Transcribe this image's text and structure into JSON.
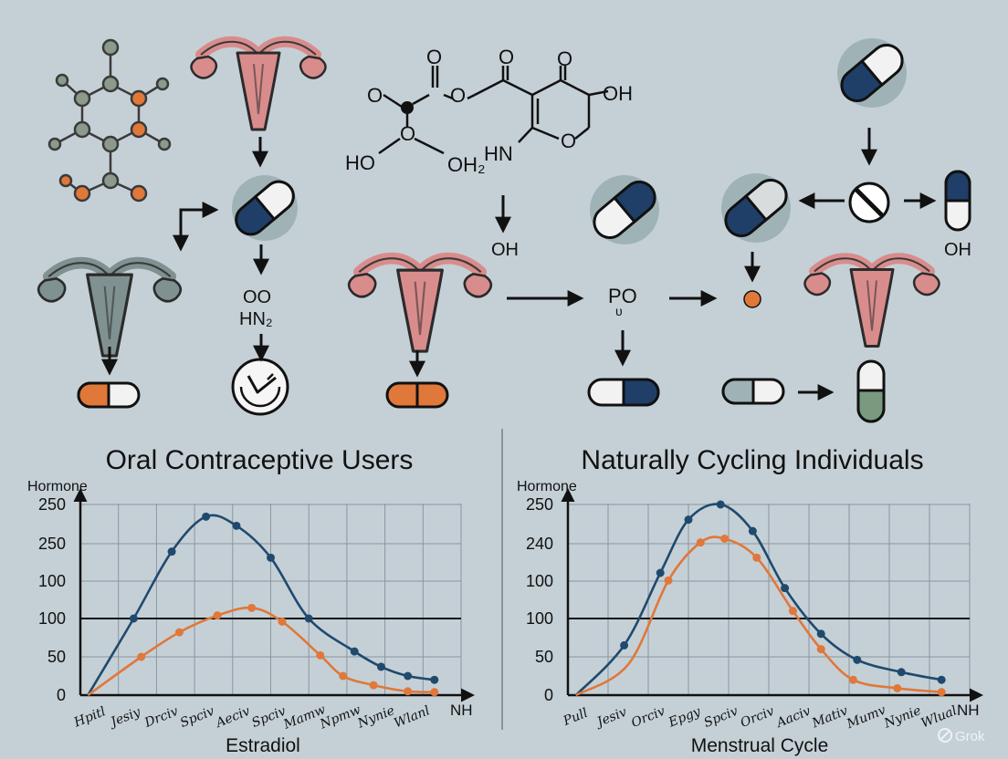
{
  "diagram": {
    "molecule_labels": {
      "left_o": "O",
      "top_o1": "O",
      "top_o2": "O",
      "top_o3": "O",
      "mid_o": "O",
      "ho": "HO",
      "oh2": "OH₂",
      "hn": "HN",
      "ring_o": "O",
      "oh_right": "OH"
    },
    "step_labels": {
      "oo": "OO",
      "hn2": "HN₂",
      "oh_below_arrow": "OH",
      "po": "PO",
      "po_sub": "ᴜ",
      "oh_right": "OH"
    }
  },
  "chart_data": [
    {
      "type": "line",
      "title": "Oral Contraceptive Users",
      "ylabel": "Hormone",
      "xlabel": "Estradiol",
      "x_end_label": "NH",
      "y_tick_labels": [
        "0",
        "50",
        "100",
        "100",
        "250",
        "250"
      ],
      "categories": [
        "Hpitl",
        "Jesiy",
        "Drciv",
        "Spciv",
        "Aeciv",
        "Sрciv",
        "Mamw",
        "Npmw",
        "Nynie",
        "Wlanl"
      ],
      "reference_line": 100,
      "series": [
        {
          "color": "#1f4a6e",
          "points": [
            [
              0.2,
              0
            ],
            [
              1.4,
              100
            ],
            [
              2.4,
              188
            ],
            [
              3.3,
              234
            ],
            [
              4.1,
              222
            ],
            [
              5.0,
              180
            ],
            [
              6.0,
              100
            ],
            [
              7.2,
              57
            ],
            [
              7.9,
              37
            ],
            [
              8.6,
              25
            ],
            [
              9.3,
              20
            ]
          ]
        },
        {
          "color": "#e0783a",
          "points": [
            [
              0.2,
              0
            ],
            [
              1.6,
              50
            ],
            [
              2.6,
              82
            ],
            [
              3.6,
              104
            ],
            [
              4.5,
              114
            ],
            [
              5.3,
              96
            ],
            [
              6.3,
              52
            ],
            [
              6.9,
              25
            ],
            [
              7.7,
              13
            ],
            [
              8.6,
              5
            ],
            [
              9.3,
              4
            ]
          ]
        }
      ]
    },
    {
      "type": "line",
      "title": "Naturally Cycling Individuals",
      "ylabel": "Hormone",
      "xlabel": "Menstrual Cycle",
      "x_end_label": "NH",
      "y_tick_labels": [
        "0",
        "50",
        "100",
        "100",
        "240",
        "250"
      ],
      "categories": [
        "Pull",
        "Jesiv",
        "Orciv",
        "Epgy",
        "Spciv",
        "Orciv",
        "Aaciv",
        "Mativ",
        "Mumv",
        "Nynie",
        "Wlual"
      ],
      "reference_line": 100,
      "series": [
        {
          "color": "#1f4a6e",
          "points": [
            [
              0.2,
              0
            ],
            [
              1.4,
              65
            ],
            [
              2.3,
              160
            ],
            [
              3.0,
              230
            ],
            [
              3.8,
              250
            ],
            [
              4.6,
              215
            ],
            [
              5.4,
              140
            ],
            [
              6.3,
              80
            ],
            [
              7.2,
              46
            ],
            [
              8.3,
              30
            ],
            [
              9.3,
              20
            ]
          ]
        },
        {
          "color": "#e0783a",
          "points": [
            [
              0.2,
              0
            ],
            [
              1.5,
              40
            ],
            [
              2.5,
              150
            ],
            [
              3.3,
              200
            ],
            [
              3.9,
              205
            ],
            [
              4.7,
              180
            ],
            [
              5.6,
              110
            ],
            [
              6.3,
              60
            ],
            [
              7.1,
              20
            ],
            [
              8.2,
              9
            ],
            [
              9.3,
              4
            ]
          ]
        }
      ]
    }
  ],
  "watermark": "Grok"
}
